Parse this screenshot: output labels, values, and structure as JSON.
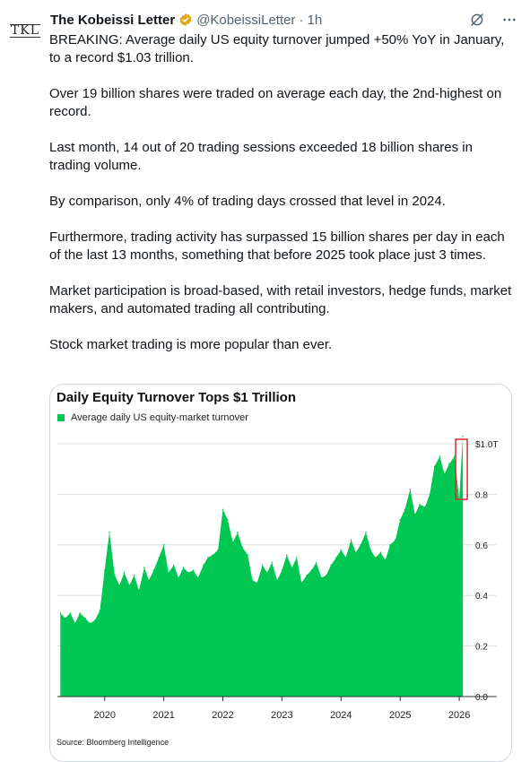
{
  "author": {
    "avatar_text": "TKL",
    "name": "The Kobeissi Letter",
    "handle": "@KobeissiLetter",
    "separator": "·",
    "time": "1h"
  },
  "icons": {
    "verified": "verified-badge-icon",
    "grok": "grok-icon",
    "more": "more-options-icon"
  },
  "tweet": {
    "paragraphs": [
      "BREAKING: Average daily US equity turnover jumped +50% YoY in January, to a record $1.03 trillion.",
      "Over 19 billion shares were traded on average each day, the 2nd-highest on record.",
      "Last month, 14 out of 20 trading sessions exceeded 18 billion shares in trading volume.",
      "By comparison, only 4% of trading days crossed that level in 2024.",
      "Furthermore, trading activity has surpassed 15 billion shares per day in each of the last 13 months, something that before 2025 took place just 3 times.",
      "Market participation is broad-based, with retail investors, hedge funds, market makers, and automated trading all contributing.",
      "Stock market trading is more popular than ever."
    ]
  },
  "colors": {
    "series": "#00c751",
    "highlight_box": "#d32f2f",
    "verified": "#e0a91a"
  },
  "chart_data": {
    "type": "area",
    "title": "Daily Equity Turnover Tops $1 Trillion",
    "legend": [
      "Average daily US equity-market turnover"
    ],
    "source": "Source: Bloomberg Intelligence",
    "x_ticks": [
      "2020",
      "2021",
      "2022",
      "2023",
      "2024",
      "2025",
      "2026"
    ],
    "x_range": [
      2019.2,
      2026.15
    ],
    "y_ticks": [
      "0.0",
      "0.2",
      "0.4",
      "0.6",
      "0.8",
      "$1.0T"
    ],
    "y_tick_values": [
      0,
      0.2,
      0.4,
      0.6,
      0.8,
      1.0
    ],
    "ylim": [
      0,
      1.0
    ],
    "grid": true,
    "y_axis_side": "right",
    "series": [
      {
        "name": "Average daily US equity-market turnover",
        "x": [
          2019.25,
          2019.33,
          2019.42,
          2019.5,
          2019.58,
          2019.67,
          2019.75,
          2019.83,
          2019.92,
          2020.0,
          2020.08,
          2020.17,
          2020.25,
          2020.33,
          2020.42,
          2020.5,
          2020.58,
          2020.67,
          2020.75,
          2020.83,
          2020.92,
          2021.0,
          2021.08,
          2021.17,
          2021.25,
          2021.33,
          2021.42,
          2021.5,
          2021.58,
          2021.67,
          2021.75,
          2021.83,
          2021.92,
          2022.0,
          2022.08,
          2022.17,
          2022.25,
          2022.33,
          2022.42,
          2022.5,
          2022.58,
          2022.67,
          2022.75,
          2022.83,
          2022.92,
          2023.0,
          2023.08,
          2023.17,
          2023.25,
          2023.33,
          2023.42,
          2023.5,
          2023.58,
          2023.67,
          2023.75,
          2023.83,
          2023.92,
          2024.0,
          2024.08,
          2024.17,
          2024.25,
          2024.33,
          2024.42,
          2024.5,
          2024.58,
          2024.67,
          2024.75,
          2024.83,
          2024.92,
          2025.0,
          2025.08,
          2025.17,
          2025.25,
          2025.33,
          2025.42,
          2025.5,
          2025.58,
          2025.67,
          2025.75,
          2025.83,
          2025.92,
          2026.0,
          2026.06
        ],
        "values": [
          0.33,
          0.31,
          0.33,
          0.29,
          0.33,
          0.31,
          0.29,
          0.3,
          0.34,
          0.5,
          0.65,
          0.48,
          0.44,
          0.49,
          0.44,
          0.48,
          0.42,
          0.51,
          0.46,
          0.5,
          0.55,
          0.6,
          0.49,
          0.52,
          0.47,
          0.51,
          0.49,
          0.5,
          0.47,
          0.52,
          0.55,
          0.56,
          0.58,
          0.74,
          0.7,
          0.61,
          0.65,
          0.59,
          0.56,
          0.46,
          0.45,
          0.52,
          0.49,
          0.53,
          0.46,
          0.5,
          0.56,
          0.51,
          0.55,
          0.45,
          0.48,
          0.5,
          0.53,
          0.47,
          0.48,
          0.52,
          0.55,
          0.58,
          0.55,
          0.62,
          0.57,
          0.6,
          0.65,
          0.58,
          0.55,
          0.57,
          0.54,
          0.6,
          0.62,
          0.7,
          0.74,
          0.82,
          0.72,
          0.76,
          0.75,
          0.8,
          0.91,
          0.95,
          0.88,
          0.92,
          0.95,
          0.78,
          1.03
        ]
      }
    ]
  }
}
